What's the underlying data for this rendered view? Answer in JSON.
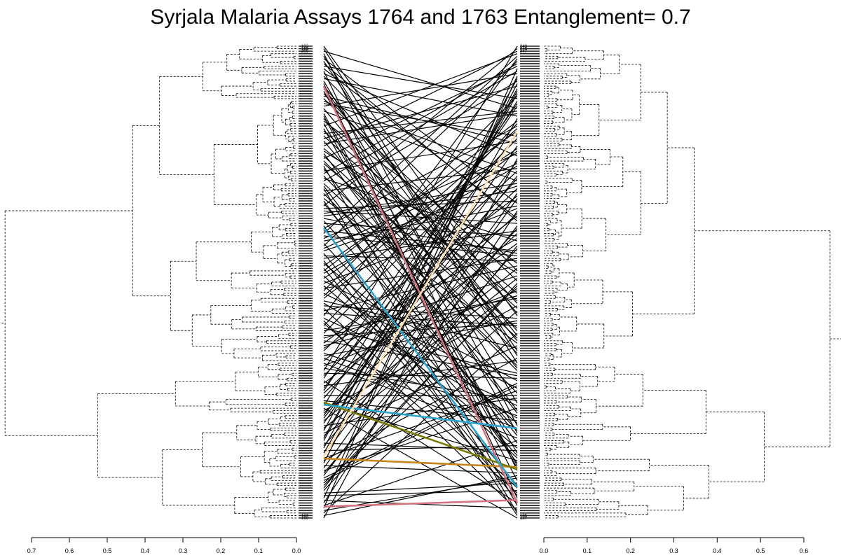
{
  "chart_data": {
    "type": "tanglegram",
    "title": "Syrjala Malaria Assays 1764 and 1763 Entanglement= 0.7",
    "entanglement": 0.7,
    "left_dendrogram": {
      "name": "Assay 1764",
      "axis_ticks": [
        "0.7",
        "0.6",
        "0.5",
        "0.4",
        "0.3",
        "0.2",
        "0.1",
        "0.0"
      ],
      "xlim": [
        0.7,
        0.0
      ],
      "root_height": 0.77,
      "top_leaf_labels": [
        "192",
        "183",
        "209"
      ],
      "bottom_leaf_labels": [
        "187",
        "190"
      ]
    },
    "right_dendrogram": {
      "name": "Assay 1763",
      "axis_ticks": [
        "0.0",
        "0.1",
        "0.2",
        "0.3",
        "0.4",
        "0.5",
        "0.6"
      ],
      "xlim": [
        0.0,
        0.6
      ],
      "root_height": 0.66,
      "top_leaf_labels": [
        "248",
        "240",
        "247"
      ],
      "bottom_leaf_labels": [
        "135",
        "137"
      ]
    },
    "leaf_count": 190,
    "connector_colors": [
      "#000000",
      "#d4717f",
      "#c8861c",
      "#2ba3cf",
      "#7a7a00",
      "#ffe0b0"
    ],
    "colored_connectors": [
      {
        "color": "#c8861c",
        "left_pos": 0.874,
        "right_pos": 0.892
      },
      {
        "color": "#d4717f",
        "left_pos": 0.976,
        "right_pos": 0.962
      },
      {
        "color": "#d4717f",
        "left_pos": 0.085,
        "right_pos": 0.968
      },
      {
        "color": "#7a7a00",
        "left_pos": 0.755,
        "right_pos": 0.897
      },
      {
        "color": "#2ba3cf",
        "left_pos": 0.385,
        "right_pos": 0.935
      },
      {
        "color": "#2ba3cf",
        "left_pos": 0.76,
        "right_pos": 0.81
      },
      {
        "color": "#ffe0b0",
        "left_pos": 0.87,
        "right_pos": 0.18
      }
    ]
  }
}
